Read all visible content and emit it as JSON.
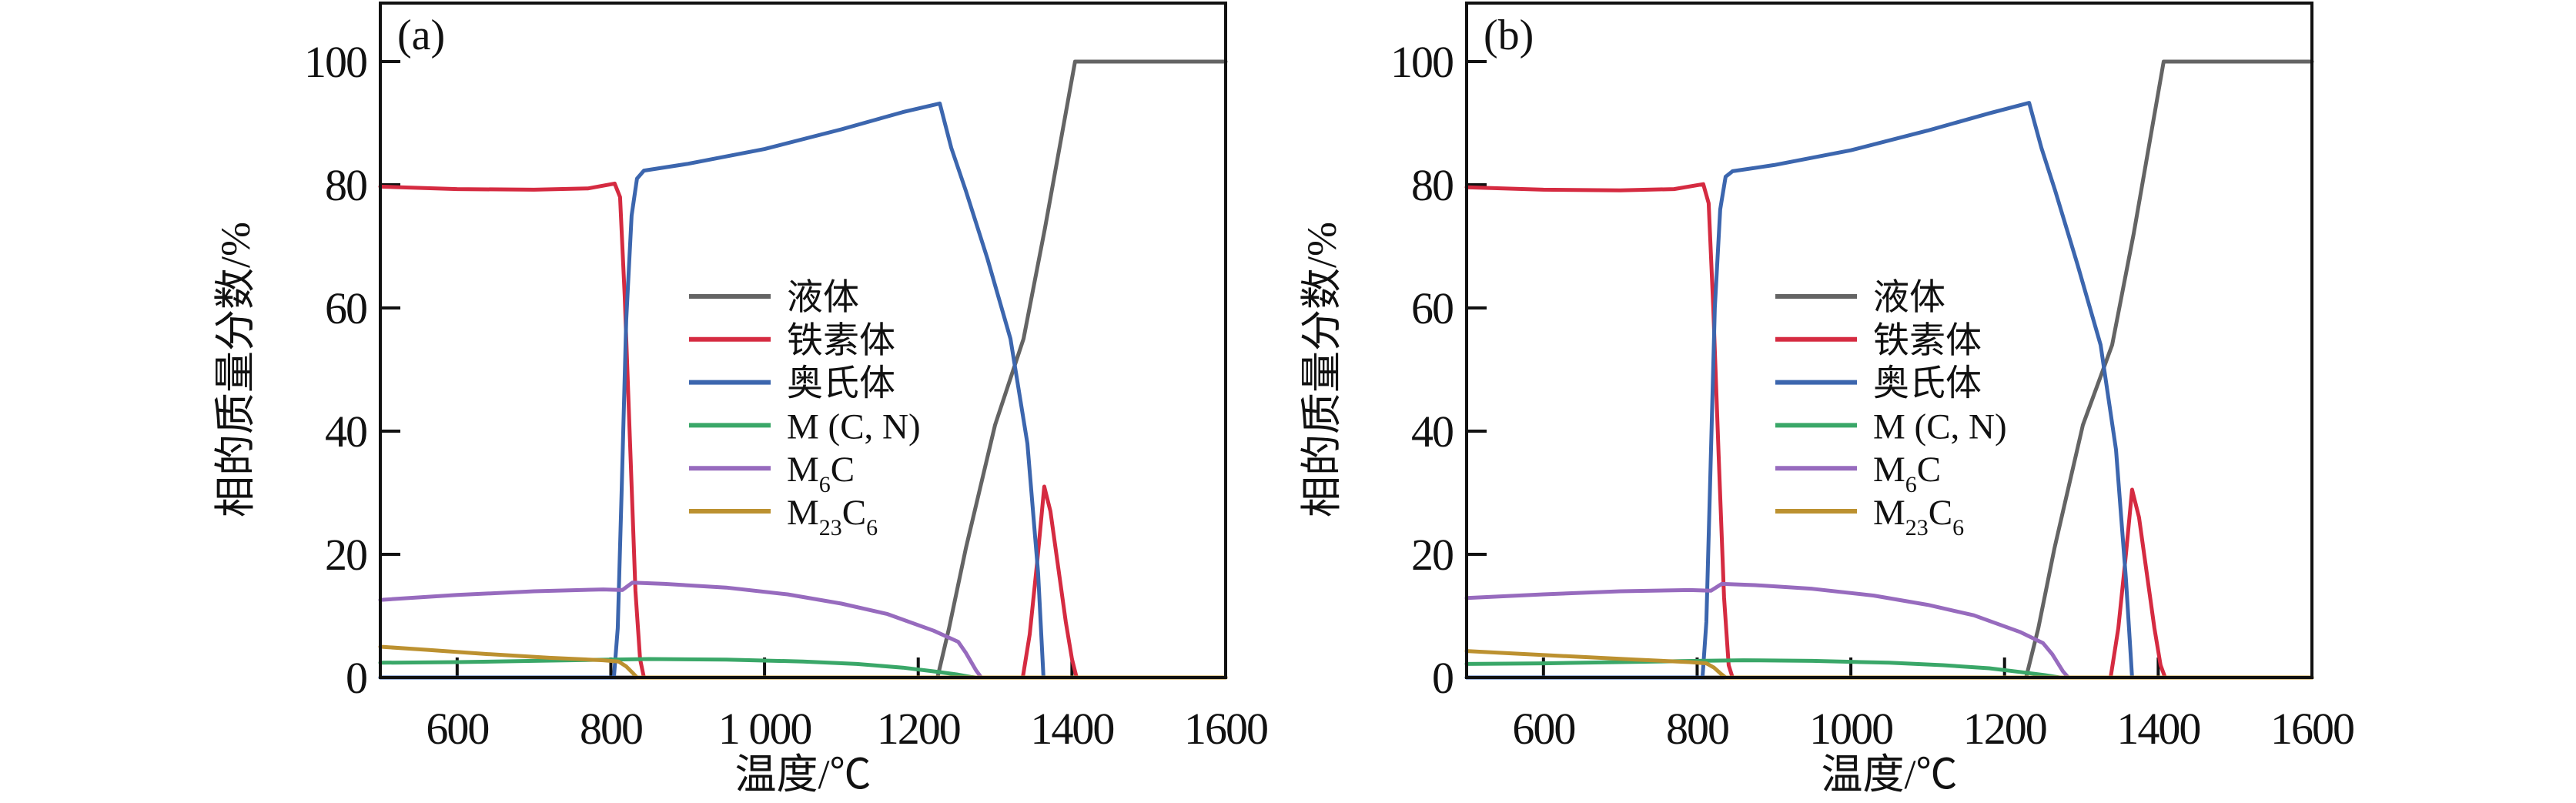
{
  "figure": {
    "background": "#ffffff",
    "axis_color": "#111111",
    "y_axis_title": "相的质量分数/%",
    "x_axis_title": "温度/℃"
  },
  "chart_data": [
    {
      "type": "line",
      "id": "a",
      "tag": "(a)",
      "xlabel": "温度/℃",
      "ylabel": "相的质量分数/%",
      "xlim": [
        500,
        1600
      ],
      "ylim": [
        0,
        100
      ],
      "grid": false,
      "legend_position": "center-right",
      "x_ticks": [
        {
          "v": 600,
          "label": "600"
        },
        {
          "v": 800,
          "label": "800"
        },
        {
          "v": 1000,
          "label": "1 000"
        },
        {
          "v": 1200,
          "label": "1200"
        },
        {
          "v": 1400,
          "label": "1400"
        },
        {
          "v": 1600,
          "label": "1600"
        }
      ],
      "y_ticks": [
        {
          "v": 0,
          "label": "0"
        },
        {
          "v": 20,
          "label": "20"
        },
        {
          "v": 40,
          "label": "40"
        },
        {
          "v": 60,
          "label": "60"
        },
        {
          "v": 80,
          "label": "80"
        },
        {
          "v": 100,
          "label": "100"
        }
      ],
      "series": [
        {
          "key": "liquid",
          "name": "液体",
          "color": "#646464",
          "label_parts": [
            {
              "t": "液体"
            }
          ],
          "points": [
            [
              500,
              0
            ],
            [
              1225,
              0
            ],
            [
              1240,
              8
            ],
            [
              1262,
              21
            ],
            [
              1300,
              41
            ],
            [
              1337,
              55
            ],
            [
              1365,
              73
            ],
            [
              1404,
              100
            ],
            [
              1600,
              100
            ]
          ]
        },
        {
          "key": "ferrite",
          "name": "铁素体",
          "color": "#d52b41",
          "label_parts": [
            {
              "t": "铁素体"
            }
          ],
          "points": [
            [
              500,
              79.7
            ],
            [
              600,
              79.3
            ],
            [
              700,
              79.2
            ],
            [
              770,
              79.4
            ],
            [
              805,
              80.2
            ],
            [
              812,
              78
            ],
            [
              818,
              62
            ],
            [
              825,
              38
            ],
            [
              832,
              14
            ],
            [
              838,
              3
            ],
            [
              843,
              0
            ],
            [
              1336,
              0
            ],
            [
              1345,
              7
            ],
            [
              1355,
              19
            ],
            [
              1364,
              31
            ],
            [
              1372,
              27
            ],
            [
              1382,
              18
            ],
            [
              1392,
              9
            ],
            [
              1400,
              3
            ],
            [
              1406,
              0
            ],
            [
              1600,
              0
            ]
          ]
        },
        {
          "key": "austenite",
          "name": "奥氏体",
          "color": "#3c66ae",
          "label_parts": [
            {
              "t": "奥氏体"
            }
          ],
          "points": [
            [
              500,
              0
            ],
            [
              804,
              0
            ],
            [
              809,
              8
            ],
            [
              814,
              30
            ],
            [
              820,
              58
            ],
            [
              827,
              75
            ],
            [
              834,
              81
            ],
            [
              843,
              82.3
            ],
            [
              900,
              83.4
            ],
            [
              1000,
              85.8
            ],
            [
              1100,
              89
            ],
            [
              1180,
              91.8
            ],
            [
              1228,
              93.2
            ],
            [
              1243,
              86
            ],
            [
              1262,
              79
            ],
            [
              1290,
              68
            ],
            [
              1320,
              55
            ],
            [
              1342,
              38
            ],
            [
              1356,
              17
            ],
            [
              1363,
              0
            ],
            [
              1600,
              0
            ]
          ]
        },
        {
          "key": "mcn",
          "name": "M (C, N)",
          "color": "#3aa768",
          "label_parts": [
            {
              "t": "M (C, N)"
            }
          ],
          "points": [
            [
              500,
              2.4
            ],
            [
              600,
              2.5
            ],
            [
              700,
              2.7
            ],
            [
              800,
              2.9
            ],
            [
              850,
              3.0
            ],
            [
              950,
              2.9
            ],
            [
              1050,
              2.6
            ],
            [
              1120,
              2.2
            ],
            [
              1180,
              1.6
            ],
            [
              1220,
              1.0
            ],
            [
              1250,
              0.5
            ],
            [
              1268,
              0.1
            ],
            [
              1275,
              0
            ],
            [
              1600,
              0
            ]
          ]
        },
        {
          "key": "m6c",
          "name": "M6C",
          "color": "#976bbe",
          "label_parts": [
            {
              "t": "M"
            },
            {
              "t": "6",
              "sub": true
            },
            {
              "t": "C"
            }
          ],
          "points": [
            [
              500,
              12.6
            ],
            [
              600,
              13.4
            ],
            [
              700,
              14.0
            ],
            [
              790,
              14.3
            ],
            [
              815,
              14.2
            ],
            [
              828,
              15.4
            ],
            [
              870,
              15.2
            ],
            [
              950,
              14.6
            ],
            [
              1030,
              13.5
            ],
            [
              1100,
              12.0
            ],
            [
              1160,
              10.3
            ],
            [
              1220,
              7.6
            ],
            [
              1252,
              5.8
            ],
            [
              1262,
              4.0
            ],
            [
              1275,
              1.2
            ],
            [
              1282,
              0
            ],
            [
              1600,
              0
            ]
          ]
        },
        {
          "key": "m23c6",
          "name": "M23C6",
          "color": "#bc9130",
          "label_parts": [
            {
              "t": "M"
            },
            {
              "t": "23",
              "sub": true
            },
            {
              "t": "C"
            },
            {
              "t": "6",
              "sub": true
            }
          ],
          "points": [
            [
              500,
              5.0
            ],
            [
              560,
              4.5
            ],
            [
              640,
              3.8
            ],
            [
              720,
              3.2
            ],
            [
              790,
              2.8
            ],
            [
              810,
              2.6
            ],
            [
              820,
              1.8
            ],
            [
              828,
              0.8
            ],
            [
              834,
              0
            ],
            [
              1600,
              0
            ]
          ]
        }
      ]
    },
    {
      "type": "line",
      "id": "b",
      "tag": "(b)",
      "xlabel": "温度/℃",
      "ylabel": "相的质量分数/%",
      "xlim": [
        500,
        1600
      ],
      "ylim": [
        0,
        100
      ],
      "grid": false,
      "legend_position": "center-right",
      "x_ticks": [
        {
          "v": 600,
          "label": "600"
        },
        {
          "v": 800,
          "label": "800"
        },
        {
          "v": 1000,
          "label": "1000"
        },
        {
          "v": 1200,
          "label": "1200"
        },
        {
          "v": 1400,
          "label": "1400"
        },
        {
          "v": 1600,
          "label": "1600"
        }
      ],
      "y_ticks": [
        {
          "v": 0,
          "label": "0"
        },
        {
          "v": 20,
          "label": "20"
        },
        {
          "v": 40,
          "label": "40"
        },
        {
          "v": 60,
          "label": "60"
        },
        {
          "v": 80,
          "label": "80"
        },
        {
          "v": 100,
          "label": "100"
        }
      ],
      "series": [
        {
          "key": "liquid",
          "name": "液体",
          "color": "#646464",
          "label_parts": [
            {
              "t": "液体"
            }
          ],
          "points": [
            [
              500,
              0
            ],
            [
              1228,
              0
            ],
            [
              1244,
              8
            ],
            [
              1265,
              21
            ],
            [
              1302,
              41
            ],
            [
              1340,
              54
            ],
            [
              1368,
              72
            ],
            [
              1407,
              100
            ],
            [
              1600,
              100
            ]
          ]
        },
        {
          "key": "ferrite",
          "name": "铁素体",
          "color": "#d52b41",
          "label_parts": [
            {
              "t": "铁素体"
            }
          ],
          "points": [
            [
              500,
              79.6
            ],
            [
              600,
              79.2
            ],
            [
              700,
              79.1
            ],
            [
              770,
              79.3
            ],
            [
              808,
              80.1
            ],
            [
              815,
              77
            ],
            [
              821,
              60
            ],
            [
              828,
              36
            ],
            [
              835,
              13
            ],
            [
              841,
              2
            ],
            [
              846,
              0
            ],
            [
              1338,
              0
            ],
            [
              1348,
              8
            ],
            [
              1358,
              20
            ],
            [
              1366,
              30.5
            ],
            [
              1375,
              26
            ],
            [
              1385,
              17
            ],
            [
              1395,
              8
            ],
            [
              1403,
              2
            ],
            [
              1409,
              0
            ],
            [
              1600,
              0
            ]
          ]
        },
        {
          "key": "austenite",
          "name": "奥氏体",
          "color": "#3c66ae",
          "label_parts": [
            {
              "t": "奥氏体"
            }
          ],
          "points": [
            [
              500,
              0
            ],
            [
              807,
              0
            ],
            [
              812,
              9
            ],
            [
              817,
              32
            ],
            [
              823,
              60
            ],
            [
              830,
              76
            ],
            [
              837,
              81.3
            ],
            [
              846,
              82.2
            ],
            [
              900,
              83.2
            ],
            [
              1000,
              85.6
            ],
            [
              1100,
              88.8
            ],
            [
              1180,
              91.6
            ],
            [
              1232,
              93.3
            ],
            [
              1248,
              86
            ],
            [
              1266,
              79
            ],
            [
              1295,
              67
            ],
            [
              1325,
              54
            ],
            [
              1345,
              37
            ],
            [
              1358,
              16
            ],
            [
              1366,
              0
            ],
            [
              1600,
              0
            ]
          ]
        },
        {
          "key": "mcn",
          "name": "M (C, N)",
          "color": "#3aa768",
          "label_parts": [
            {
              "t": "M (C, N)"
            }
          ],
          "points": [
            [
              500,
              2.2
            ],
            [
              600,
              2.3
            ],
            [
              700,
              2.5
            ],
            [
              800,
              2.7
            ],
            [
              860,
              2.8
            ],
            [
              950,
              2.7
            ],
            [
              1050,
              2.4
            ],
            [
              1120,
              2.0
            ],
            [
              1180,
              1.5
            ],
            [
              1220,
              0.9
            ],
            [
              1252,
              0.4
            ],
            [
              1272,
              0
            ],
            [
              1600,
              0
            ]
          ]
        },
        {
          "key": "m6c",
          "name": "M6C",
          "color": "#976bbe",
          "label_parts": [
            {
              "t": "M"
            },
            {
              "t": "6",
              "sub": true
            },
            {
              "t": "C"
            }
          ],
          "points": [
            [
              500,
              12.9
            ],
            [
              600,
              13.5
            ],
            [
              700,
              14.0
            ],
            [
              790,
              14.2
            ],
            [
              818,
              14.1
            ],
            [
              832,
              15.2
            ],
            [
              875,
              15.0
            ],
            [
              950,
              14.4
            ],
            [
              1030,
              13.3
            ],
            [
              1100,
              11.8
            ],
            [
              1160,
              10.1
            ],
            [
              1220,
              7.4
            ],
            [
              1250,
              5.6
            ],
            [
              1262,
              3.8
            ],
            [
              1276,
              1.0
            ],
            [
              1283,
              0
            ],
            [
              1600,
              0
            ]
          ]
        },
        {
          "key": "m23c6",
          "name": "M23C6",
          "color": "#bc9130",
          "label_parts": [
            {
              "t": "M"
            },
            {
              "t": "23",
              "sub": true
            },
            {
              "t": "C"
            },
            {
              "t": "6",
              "sub": true
            }
          ],
          "points": [
            [
              500,
              4.3
            ],
            [
              560,
              3.9
            ],
            [
              640,
              3.4
            ],
            [
              720,
              2.9
            ],
            [
              790,
              2.5
            ],
            [
              812,
              2.3
            ],
            [
              822,
              1.6
            ],
            [
              830,
              0.7
            ],
            [
              837,
              0
            ],
            [
              1600,
              0
            ]
          ]
        }
      ]
    }
  ]
}
